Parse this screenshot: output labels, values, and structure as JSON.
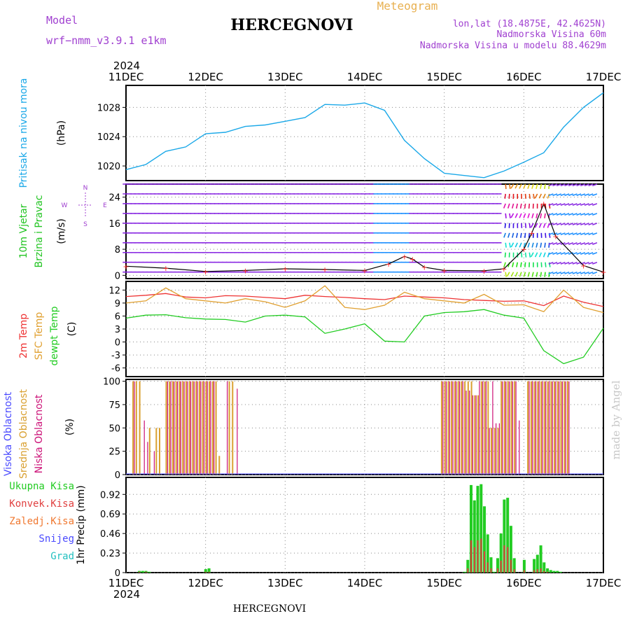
{
  "header": {
    "model_label": "Model",
    "model_value": "wrf−nmm_v3.9.1  e1km",
    "station": "HERCEGNOVI",
    "product": "Meteogram",
    "lonlat": "lon,lat (18.4875E, 42.4625N)",
    "elev": "Nadmorska Visina 60m",
    "elev_model": "Nadmorska Visina u modelu 88.4629m",
    "credit": "made by Angel",
    "footer_station": "HERCEGNOVI",
    "year_top": "2024",
    "year_bottom": "2024"
  },
  "colors": {
    "pressure": "#1aa8e8",
    "wind_title": "#22c422",
    "wind_arrow": "#8a2be2",
    "wind_arrow_alt": "#1e90ff",
    "gust_line": "#000000",
    "gust_marker": "#ff2a2a",
    "temp2m": "#ee3333",
    "sfc": "#e0a030",
    "dewpt": "#22cc22",
    "cloud_high": "#4a4aff",
    "cloud_mid": "#d9a030",
    "cloud_low": "#cc1177",
    "precip_total": "#22cc22",
    "precip_conv": "#e04040",
    "precip_frozen": "#f07830",
    "snow": "#4a4aff",
    "hail": "#22c0c0",
    "axis": "#000000",
    "grid": "#888888",
    "purple_text": "#a040d0"
  },
  "chart_data": [
    {
      "type": "line",
      "panel": "pressure",
      "ylabel_lines": [
        "Pritisak na nivou mora",
        "(hPa)"
      ],
      "x_ticks": [
        "11DEC",
        "12DEC",
        "13DEC",
        "14DEC",
        "15DEC",
        "16DEC",
        "17DEC"
      ],
      "xlim_days": [
        0,
        6
      ],
      "ylim": [
        1018,
        1031
      ],
      "yticks": [
        1020,
        1024,
        1028
      ],
      "series": [
        {
          "x_days": [
            0,
            0.25,
            0.5,
            0.75,
            1.0,
            1.25,
            1.5,
            1.75,
            2.0,
            2.25,
            2.5,
            2.75,
            3.0,
            3.25,
            3.5,
            3.75,
            4.0,
            4.25,
            4.5,
            4.75,
            5.0,
            5.25,
            5.5,
            5.75,
            6.0
          ],
          "values": [
            1019.5,
            1020.2,
            1022.0,
            1022.6,
            1024.4,
            1024.6,
            1025.4,
            1025.6,
            1026.1,
            1026.6,
            1028.4,
            1028.3,
            1028.6,
            1027.6,
            1023.5,
            1021.0,
            1019.0,
            1018.7,
            1018.4,
            1019.3,
            1020.5,
            1021.8,
            1025.3,
            1028.0,
            1030.0
          ]
        }
      ]
    },
    {
      "type": "line",
      "panel": "wind",
      "ylabel_lines": [
        "10m Vjetar",
        "Brzina i Pravac",
        "(m/s)"
      ],
      "compass": [
        "N",
        "E",
        "W",
        "S"
      ],
      "ylim": [
        -1,
        28
      ],
      "yticks": [
        0,
        8,
        16,
        24
      ],
      "arrow_levels": [
        1,
        4,
        7,
        10,
        13,
        16,
        19,
        22,
        25,
        28
      ],
      "series": [
        {
          "name": "speed",
          "x_days": [
            0,
            0.5,
            1.0,
            1.5,
            2.0,
            2.5,
            3.0,
            3.3,
            3.5,
            3.6,
            3.75,
            4.0,
            4.5,
            4.75,
            5.0,
            5.1,
            5.25,
            5.4,
            5.75,
            6.0
          ],
          "values": [
            2.8,
            2.2,
            1.2,
            1.5,
            2.0,
            1.8,
            1.5,
            3.5,
            5.8,
            5.0,
            2.5,
            1.5,
            1.4,
            2.0,
            8.0,
            13.0,
            22.0,
            12.0,
            3.0,
            1.0
          ]
        }
      ]
    },
    {
      "type": "line",
      "panel": "temperature",
      "ylabel_lines": [
        "2m Temp",
        "SFC Temp",
        "dewpt Temp",
        "(C)"
      ],
      "ylim": [
        -8,
        14
      ],
      "yticks": [
        -6,
        -3,
        0,
        3,
        6,
        9,
        12
      ],
      "series": [
        {
          "name": "2m Temp",
          "x_days": [
            0,
            0.25,
            0.5,
            0.75,
            1.0,
            1.25,
            1.5,
            1.75,
            2.0,
            2.25,
            2.5,
            2.75,
            3.0,
            3.25,
            3.5,
            3.75,
            4.0,
            4.25,
            4.5,
            4.75,
            5.0,
            5.25,
            5.5,
            5.75,
            6.0
          ],
          "values": [
            10.5,
            10.8,
            11.2,
            10.4,
            10.2,
            10.7,
            10.6,
            10.3,
            10.0,
            10.8,
            10.5,
            10.3,
            10.0,
            9.8,
            10.6,
            10.4,
            10.2,
            9.8,
            9.6,
            9.4,
            9.5,
            8.4,
            10.6,
            9.2,
            8.2
          ]
        },
        {
          "name": "SFC Temp",
          "x_days": [
            0,
            0.25,
            0.5,
            0.75,
            1.0,
            1.25,
            1.5,
            1.75,
            2.0,
            2.25,
            2.5,
            2.75,
            3.0,
            3.25,
            3.5,
            3.75,
            4.0,
            4.25,
            4.5,
            4.75,
            5.0,
            5.25,
            5.5,
            5.75,
            6.0
          ],
          "values": [
            9.0,
            9.5,
            12.5,
            10.0,
            9.5,
            9.0,
            10.0,
            9.3,
            8.0,
            9.5,
            13.0,
            8.0,
            7.5,
            8.5,
            11.5,
            10.0,
            9.5,
            9.0,
            11.0,
            8.5,
            8.6,
            7.0,
            12.0,
            8.0,
            6.8
          ]
        },
        {
          "name": "dewpt Temp",
          "x_days": [
            0,
            0.25,
            0.5,
            0.75,
            1.0,
            1.25,
            1.5,
            1.75,
            2.0,
            2.25,
            2.5,
            2.75,
            3.0,
            3.25,
            3.5,
            3.75,
            4.0,
            4.25,
            4.5,
            4.75,
            5.0,
            5.25,
            5.5,
            5.75,
            6.0
          ],
          "values": [
            5.5,
            6.2,
            6.3,
            5.6,
            5.3,
            5.2,
            4.6,
            6.0,
            6.2,
            5.8,
            2.0,
            3.0,
            4.2,
            0.2,
            0.0,
            6.0,
            6.8,
            7.0,
            7.5,
            6.2,
            5.5,
            -2.0,
            -5.0,
            -3.5,
            3.2
          ]
        }
      ]
    },
    {
      "type": "bar",
      "panel": "clouds",
      "ylabel_lines": [
        "Visoka Oblacnost",
        "Srednja Oblacnost",
        "Niska Oblacnost",
        "(%)"
      ],
      "ylim": [
        0,
        102
      ],
      "yticks": [
        0,
        25,
        50,
        75,
        100
      ],
      "bar_step_days": 0.0417,
      "series": [
        {
          "name": "Srednja Oblacnost",
          "start_day": 0.08,
          "values": [
            100,
            100,
            100,
            0,
            0,
            50,
            0,
            50,
            50,
            0,
            100,
            100,
            100,
            100,
            100,
            100,
            100,
            100,
            100,
            100,
            100,
            100,
            100,
            100,
            100,
            100,
            20,
            0,
            0,
            100,
            100,
            0,
            0,
            0,
            0,
            0,
            0,
            0,
            0,
            0,
            0,
            0,
            0,
            0,
            0,
            0,
            0,
            0,
            0,
            0,
            0,
            0,
            0,
            0,
            0,
            0,
            0,
            0,
            0,
            0,
            0,
            0,
            0,
            0,
            0,
            0,
            0,
            0,
            0,
            0,
            0,
            0,
            0,
            0,
            0,
            0,
            0,
            0,
            0,
            0,
            0,
            0,
            0,
            0,
            0,
            0,
            0,
            0,
            0,
            0,
            0,
            0,
            0,
            100,
            100,
            100,
            100,
            100,
            100,
            100,
            100,
            100,
            100,
            85,
            85,
            100,
            100,
            100,
            50,
            50,
            50,
            100,
            100,
            100,
            100,
            100,
            0,
            0,
            0,
            100,
            100,
            100,
            100,
            100,
            100,
            100,
            100,
            100,
            100,
            100,
            100,
            100,
            0,
            0,
            0
          ]
        },
        {
          "name": "Niska Oblacnost",
          "start_day": 0.1,
          "values": [
            100,
            0,
            0,
            58,
            35,
            0,
            25,
            0,
            0,
            0,
            100,
            100,
            100,
            100,
            100,
            100,
            100,
            100,
            100,
            100,
            100,
            100,
            100,
            100,
            100,
            0,
            0,
            0,
            100,
            0,
            0,
            92,
            0,
            0,
            0,
            0,
            0,
            0,
            0,
            0,
            0,
            0,
            0,
            0,
            0,
            0,
            0,
            0,
            0,
            0,
            0,
            0,
            0,
            0,
            0,
            0,
            0,
            0,
            0,
            0,
            0,
            0,
            0,
            0,
            0,
            0,
            0,
            0,
            0,
            0,
            0,
            0,
            0,
            0,
            0,
            0,
            0,
            0,
            0,
            0,
            0,
            0,
            0,
            0,
            0,
            0,
            0,
            0,
            0,
            0,
            0,
            0,
            0,
            100,
            100,
            100,
            100,
            100,
            100,
            100,
            90,
            90,
            85,
            85,
            100,
            100,
            100,
            50,
            100,
            55,
            55,
            100,
            100,
            100,
            100,
            100,
            58,
            0,
            0,
            100,
            100,
            100,
            100,
            100,
            100,
            100,
            100,
            100,
            100,
            100,
            100,
            100,
            0,
            0,
            0
          ]
        }
      ]
    },
    {
      "type": "bar",
      "panel": "precipitation",
      "ylabel_lines": [
        "1hr Precip (mm)"
      ],
      "legend": [
        "Ukupna Kisa",
        "Konvek.Kisa",
        "Zaledj.Kisa",
        "Snijeg",
        "Grad"
      ],
      "ylim": [
        0,
        1.12
      ],
      "yticks": [
        0,
        0.23,
        0.46,
        0.69,
        0.92
      ],
      "bar_step_days": 0.0417,
      "series": [
        {
          "name": "Ukupna Kisa",
          "start_day": 0.15,
          "values": [
            0.02,
            0.02,
            0.02,
            0.01,
            0.0,
            0.0,
            0.0,
            0.0,
            0.0,
            0.0,
            0.0,
            0.0,
            0.0,
            0.0,
            0.0,
            0.0,
            0.0,
            0.0,
            0.0,
            0.0,
            0.04,
            0.05,
            0.0,
            0.0,
            0.0,
            0.0,
            0.0,
            0.0,
            0.0,
            0.0,
            0.0,
            0.0,
            0.0,
            0.0,
            0.0,
            0.0,
            0.0,
            0.0,
            0.0,
            0.0,
            0.0,
            0.0,
            0.0,
            0.0,
            0.0,
            0.0,
            0.0,
            0.0,
            0.0,
            0.0,
            0.0,
            0.0,
            0.0,
            0.0,
            0.0,
            0.0,
            0.0,
            0.0,
            0.0,
            0.0,
            0.0,
            0.0,
            0.0,
            0.0,
            0.0,
            0.0,
            0.0,
            0.0,
            0.0,
            0.0,
            0.0,
            0.0,
            0.0,
            0.0,
            0.0,
            0.0,
            0.0,
            0.0,
            0.0,
            0.0,
            0.0,
            0.0,
            0.0,
            0.0,
            0.0,
            0.0,
            0.0,
            0.0,
            0.0,
            0.0,
            0.0,
            0.0,
            0.0,
            0.0,
            0.0,
            0.0,
            0.0,
            0.0,
            0.01,
            0.15,
            1.03,
            0.85,
            1.02,
            1.04,
            0.78,
            0.45,
            0.18,
            0.01,
            0.17,
            0.46,
            0.86,
            0.88,
            0.55,
            0.17,
            0.0,
            0.0,
            0.15,
            0.0,
            0.0,
            0.16,
            0.21,
            0.32,
            0.12,
            0.05,
            0.03,
            0.02,
            0.02,
            0.01
          ]
        },
        {
          "name": "Konvek.Kisa",
          "start_day": 0.15,
          "values": [
            0.01,
            0.0,
            0.01,
            0.0,
            0.0,
            0.0,
            0.0,
            0.0,
            0.0,
            0.0,
            0.0,
            0.0,
            0.0,
            0.0,
            0.0,
            0.0,
            0.0,
            0.0,
            0.0,
            0.0,
            0.01,
            0.01,
            0.0,
            0.0,
            0.0,
            0.0,
            0.0,
            0.0,
            0.0,
            0.0,
            0.0,
            0.0,
            0.0,
            0.0,
            0.0,
            0.0,
            0.0,
            0.0,
            0.0,
            0.0,
            0.0,
            0.0,
            0.0,
            0.0,
            0.0,
            0.0,
            0.0,
            0.0,
            0.0,
            0.0,
            0.0,
            0.0,
            0.0,
            0.0,
            0.0,
            0.0,
            0.0,
            0.0,
            0.0,
            0.0,
            0.0,
            0.0,
            0.0,
            0.0,
            0.0,
            0.0,
            0.0,
            0.0,
            0.0,
            0.0,
            0.0,
            0.0,
            0.0,
            0.0,
            0.0,
            0.0,
            0.0,
            0.0,
            0.0,
            0.0,
            0.0,
            0.0,
            0.0,
            0.0,
            0.0,
            0.0,
            0.0,
            0.0,
            0.0,
            0.0,
            0.0,
            0.0,
            0.0,
            0.0,
            0.0,
            0.0,
            0.0,
            0.0,
            0.0,
            0.05,
            0.38,
            0.3,
            0.38,
            0.4,
            0.25,
            0.12,
            0.05,
            0.0,
            0.05,
            0.14,
            0.32,
            0.3,
            0.15,
            0.04,
            0.0,
            0.0,
            0.03,
            0.0,
            0.0,
            0.03,
            0.04,
            0.05,
            0.02,
            0.01,
            0.0,
            0.0,
            0.0,
            0.0
          ]
        }
      ]
    }
  ]
}
